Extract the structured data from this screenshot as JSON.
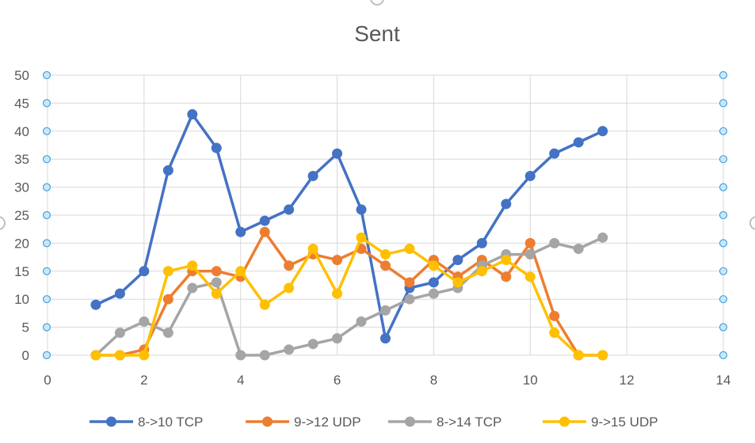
{
  "chart_data": {
    "type": "scatter",
    "title": "Sent",
    "xlabel": "",
    "ylabel": "",
    "xlim": [
      0,
      14
    ],
    "ylim": [
      0,
      50
    ],
    "xticks": [
      "0",
      "2",
      "4",
      "6",
      "8",
      "10",
      "12",
      "14"
    ],
    "yticks": [
      "0",
      "5",
      "10",
      "15",
      "20",
      "25",
      "30",
      "35",
      "40",
      "45",
      "50"
    ],
    "grid": true,
    "legend_position": "bottom",
    "x": [
      1,
      1.5,
      2,
      2.5,
      3,
      3.5,
      4,
      4.5,
      5,
      5.5,
      6,
      6.5,
      7,
      7.5,
      8,
      8.5,
      9,
      9.5,
      10,
      10.5,
      11,
      11.5
    ],
    "series": [
      {
        "name": "8->10 TCP",
        "color": "#4472C4",
        "values": [
          9,
          11,
          15,
          33,
          43,
          37,
          22,
          24,
          26,
          32,
          36,
          26,
          3,
          12,
          13,
          17,
          20,
          27,
          32,
          36,
          38,
          40
        ]
      },
      {
        "name": "9->12 UDP",
        "color": "#ED7D31",
        "values": [
          0,
          0,
          1,
          10,
          15,
          15,
          14,
          22,
          16,
          18,
          17,
          19,
          16,
          13,
          17,
          14,
          17,
          14,
          20,
          7,
          0,
          0
        ]
      },
      {
        "name": "8->14 TCP",
        "color": "#A5A5A5",
        "values": [
          0,
          4,
          6,
          4,
          12,
          13,
          0,
          0,
          1,
          2,
          3,
          6,
          8,
          10,
          11,
          12,
          16,
          18,
          18,
          20,
          19,
          21
        ]
      },
      {
        "name": "9->15 UDP",
        "color": "#FFC000",
        "values": [
          0,
          0,
          0,
          15,
          16,
          11,
          15,
          9,
          12,
          19,
          11,
          21,
          18,
          19,
          16,
          13,
          15,
          17,
          14,
          4,
          0,
          0
        ]
      }
    ]
  }
}
